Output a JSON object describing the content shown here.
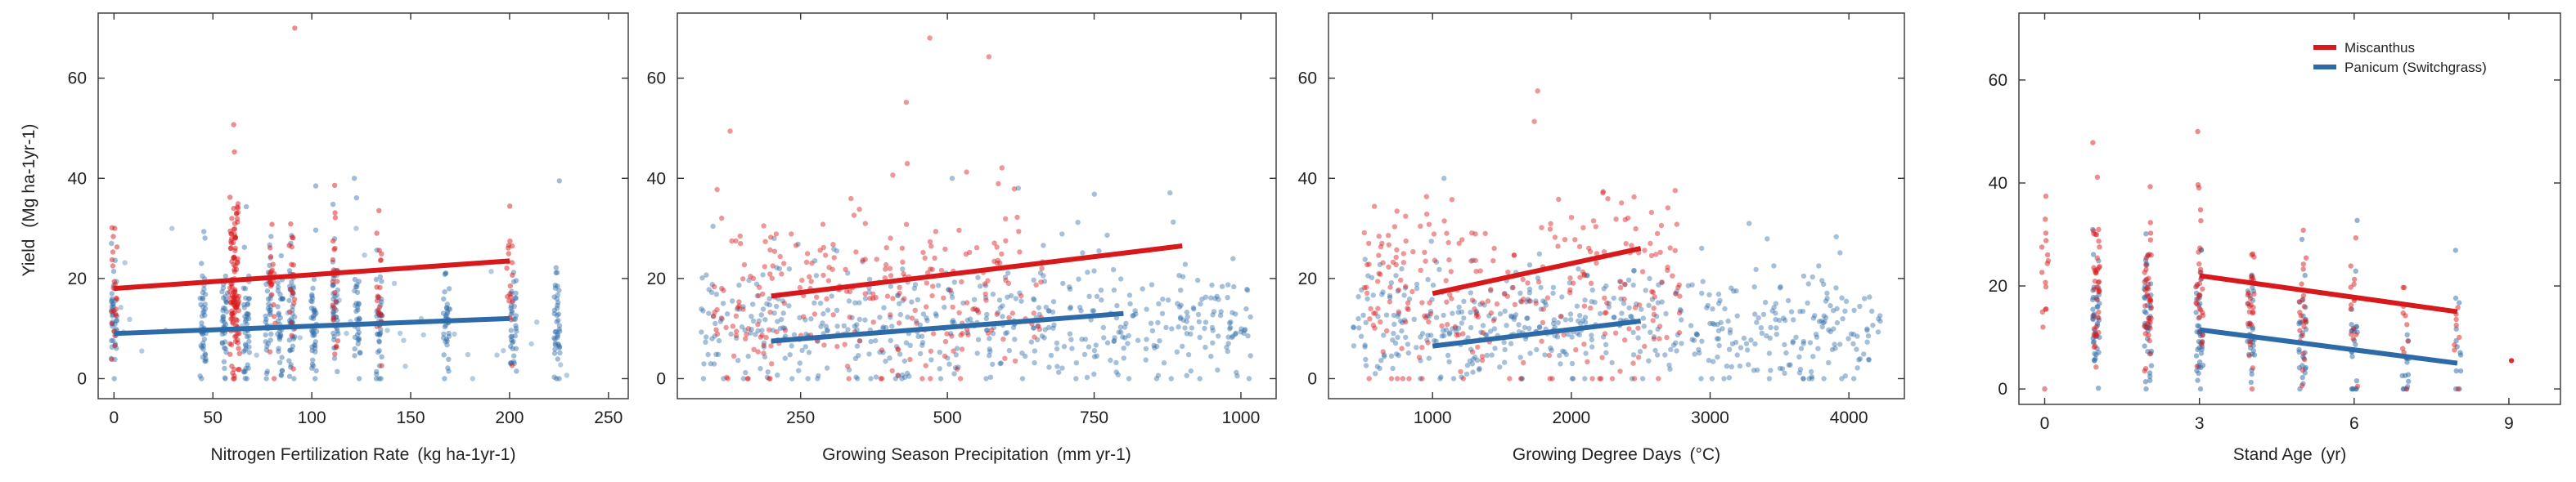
{
  "colors": {
    "miscanthus": "#d7191c",
    "panicum": "#2c6aa8"
  },
  "legend": {
    "miscanthus": "Miscanthus",
    "panicum": "Panicum (Switchgrass)"
  },
  "y_axis": {
    "label": "Yield",
    "unit": "(Mg ha-1yr-1)",
    "ticks": [
      0,
      20,
      40,
      60
    ]
  },
  "chart_data": [
    {
      "type": "scatter",
      "id": "nitrogen",
      "xlabel": "Nitrogen Fertilization Rate",
      "xunit": "(kg ha-1yr-1)",
      "xlim": [
        -8,
        260
      ],
      "ylim": [
        -4,
        73
      ],
      "xticks": [
        0,
        50,
        100,
        150,
        200,
        250
      ],
      "yticks": [
        0,
        20,
        40,
        60
      ],
      "miscanthus_x_groups": [
        0,
        60,
        62,
        80,
        90,
        112,
        134,
        200
      ],
      "panicum_x_groups": [
        0,
        45,
        56,
        67,
        78,
        84,
        90,
        101,
        112,
        123,
        134,
        168,
        202,
        224
      ],
      "series": [
        {
          "name": "Miscanthus",
          "trend": {
            "x": [
              0,
              200
            ],
            "y": [
              18,
              23.5
            ]
          }
        },
        {
          "name": "Panicum (Switchgrass)",
          "trend": {
            "x": [
              0,
              200
            ],
            "y": [
              9,
              12
            ]
          }
        }
      ]
    },
    {
      "type": "scatter",
      "id": "precipitation",
      "xlabel": "Growing Season Precipitation",
      "xunit": "(mm yr-1)",
      "xlim": [
        40,
        1060
      ],
      "ylim": [
        -4,
        73
      ],
      "xticks": [
        250,
        500,
        750,
        1000
      ],
      "yticks": [
        0,
        20,
        40,
        60
      ],
      "series": [
        {
          "name": "Miscanthus",
          "trend": {
            "x": [
              200,
              900
            ],
            "y": [
              16.5,
              26.5
            ]
          }
        },
        {
          "name": "Panicum (Switchgrass)",
          "trend": {
            "x": [
              200,
              800
            ],
            "y": [
              7.5,
              13
            ]
          }
        }
      ]
    },
    {
      "type": "scatter",
      "id": "gdd",
      "xlabel": "Growing Degree Days",
      "xunit": "(°C)",
      "xlim": [
        250,
        4400
      ],
      "ylim": [
        -4,
        73
      ],
      "xticks": [
        1000,
        2000,
        3000,
        4000
      ],
      "yticks": [
        0,
        20,
        40,
        60
      ],
      "series": [
        {
          "name": "Miscanthus",
          "trend": {
            "x": [
              1000,
              2500
            ],
            "y": [
              17,
              26
            ]
          }
        },
        {
          "name": "Panicum (Switchgrass)",
          "trend": {
            "x": [
              1000,
              2500
            ],
            "y": [
              6.5,
              11.5
            ]
          }
        }
      ]
    },
    {
      "type": "scatter",
      "id": "stand_age",
      "xlabel": "Stand Age",
      "xunit": "(yr)",
      "xlim": [
        -0.5,
        10
      ],
      "ylim": [
        -3,
        73
      ],
      "xticks": [
        0,
        3,
        6,
        9
      ],
      "yticks": [
        0,
        20,
        40,
        60
      ],
      "series": [
        {
          "name": "Miscanthus",
          "trend": {
            "x": [
              3,
              8
            ],
            "y": [
              22,
              15
            ]
          }
        },
        {
          "name": "Panicum (Switchgrass)",
          "trend": {
            "x": [
              3,
              8
            ],
            "y": [
              11.5,
              5
            ]
          }
        }
      ]
    }
  ]
}
